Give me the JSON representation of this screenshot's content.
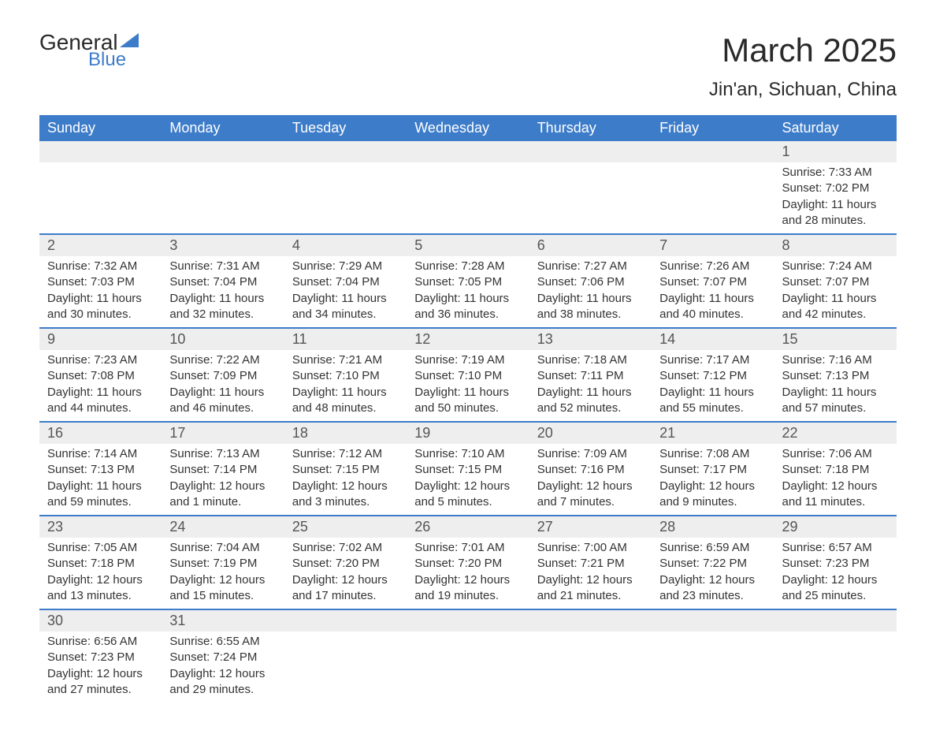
{
  "logo": {
    "text_main": "General",
    "text_sub": "Blue"
  },
  "title": "March 2025",
  "location": "Jin'an, Sichuan, China",
  "colors": {
    "header_bg": "#3d7cc9",
    "header_text": "#ffffff",
    "daynum_bg": "#eeeeee",
    "row_border": "#3d7cc9",
    "body_text": "#333333",
    "title_text": "#2a2a2a",
    "logo_accent": "#3d7cc9"
  },
  "typography": {
    "title_fontsize": 42,
    "location_fontsize": 24,
    "header_fontsize": 18,
    "daynum_fontsize": 18,
    "data_fontsize": 15
  },
  "day_headers": [
    "Sunday",
    "Monday",
    "Tuesday",
    "Wednesday",
    "Thursday",
    "Friday",
    "Saturday"
  ],
  "labels": {
    "sunrise": "Sunrise:",
    "sunset": "Sunset:",
    "daylight": "Daylight:"
  },
  "weeks": [
    [
      null,
      null,
      null,
      null,
      null,
      null,
      {
        "d": "1",
        "sr": "7:33 AM",
        "ss": "7:02 PM",
        "dl": "11 hours and 28 minutes."
      }
    ],
    [
      {
        "d": "2",
        "sr": "7:32 AM",
        "ss": "7:03 PM",
        "dl": "11 hours and 30 minutes."
      },
      {
        "d": "3",
        "sr": "7:31 AM",
        "ss": "7:04 PM",
        "dl": "11 hours and 32 minutes."
      },
      {
        "d": "4",
        "sr": "7:29 AM",
        "ss": "7:04 PM",
        "dl": "11 hours and 34 minutes."
      },
      {
        "d": "5",
        "sr": "7:28 AM",
        "ss": "7:05 PM",
        "dl": "11 hours and 36 minutes."
      },
      {
        "d": "6",
        "sr": "7:27 AM",
        "ss": "7:06 PM",
        "dl": "11 hours and 38 minutes."
      },
      {
        "d": "7",
        "sr": "7:26 AM",
        "ss": "7:07 PM",
        "dl": "11 hours and 40 minutes."
      },
      {
        "d": "8",
        "sr": "7:24 AM",
        "ss": "7:07 PM",
        "dl": "11 hours and 42 minutes."
      }
    ],
    [
      {
        "d": "9",
        "sr": "7:23 AM",
        "ss": "7:08 PM",
        "dl": "11 hours and 44 minutes."
      },
      {
        "d": "10",
        "sr": "7:22 AM",
        "ss": "7:09 PM",
        "dl": "11 hours and 46 minutes."
      },
      {
        "d": "11",
        "sr": "7:21 AM",
        "ss": "7:10 PM",
        "dl": "11 hours and 48 minutes."
      },
      {
        "d": "12",
        "sr": "7:19 AM",
        "ss": "7:10 PM",
        "dl": "11 hours and 50 minutes."
      },
      {
        "d": "13",
        "sr": "7:18 AM",
        "ss": "7:11 PM",
        "dl": "11 hours and 52 minutes."
      },
      {
        "d": "14",
        "sr": "7:17 AM",
        "ss": "7:12 PM",
        "dl": "11 hours and 55 minutes."
      },
      {
        "d": "15",
        "sr": "7:16 AM",
        "ss": "7:13 PM",
        "dl": "11 hours and 57 minutes."
      }
    ],
    [
      {
        "d": "16",
        "sr": "7:14 AM",
        "ss": "7:13 PM",
        "dl": "11 hours and 59 minutes."
      },
      {
        "d": "17",
        "sr": "7:13 AM",
        "ss": "7:14 PM",
        "dl": "12 hours and 1 minute."
      },
      {
        "d": "18",
        "sr": "7:12 AM",
        "ss": "7:15 PM",
        "dl": "12 hours and 3 minutes."
      },
      {
        "d": "19",
        "sr": "7:10 AM",
        "ss": "7:15 PM",
        "dl": "12 hours and 5 minutes."
      },
      {
        "d": "20",
        "sr": "7:09 AM",
        "ss": "7:16 PM",
        "dl": "12 hours and 7 minutes."
      },
      {
        "d": "21",
        "sr": "7:08 AM",
        "ss": "7:17 PM",
        "dl": "12 hours and 9 minutes."
      },
      {
        "d": "22",
        "sr": "7:06 AM",
        "ss": "7:18 PM",
        "dl": "12 hours and 11 minutes."
      }
    ],
    [
      {
        "d": "23",
        "sr": "7:05 AM",
        "ss": "7:18 PM",
        "dl": "12 hours and 13 minutes."
      },
      {
        "d": "24",
        "sr": "7:04 AM",
        "ss": "7:19 PM",
        "dl": "12 hours and 15 minutes."
      },
      {
        "d": "25",
        "sr": "7:02 AM",
        "ss": "7:20 PM",
        "dl": "12 hours and 17 minutes."
      },
      {
        "d": "26",
        "sr": "7:01 AM",
        "ss": "7:20 PM",
        "dl": "12 hours and 19 minutes."
      },
      {
        "d": "27",
        "sr": "7:00 AM",
        "ss": "7:21 PM",
        "dl": "12 hours and 21 minutes."
      },
      {
        "d": "28",
        "sr": "6:59 AM",
        "ss": "7:22 PM",
        "dl": "12 hours and 23 minutes."
      },
      {
        "d": "29",
        "sr": "6:57 AM",
        "ss": "7:23 PM",
        "dl": "12 hours and 25 minutes."
      }
    ],
    [
      {
        "d": "30",
        "sr": "6:56 AM",
        "ss": "7:23 PM",
        "dl": "12 hours and 27 minutes."
      },
      {
        "d": "31",
        "sr": "6:55 AM",
        "ss": "7:24 PM",
        "dl": "12 hours and 29 minutes."
      },
      null,
      null,
      null,
      null,
      null
    ]
  ]
}
